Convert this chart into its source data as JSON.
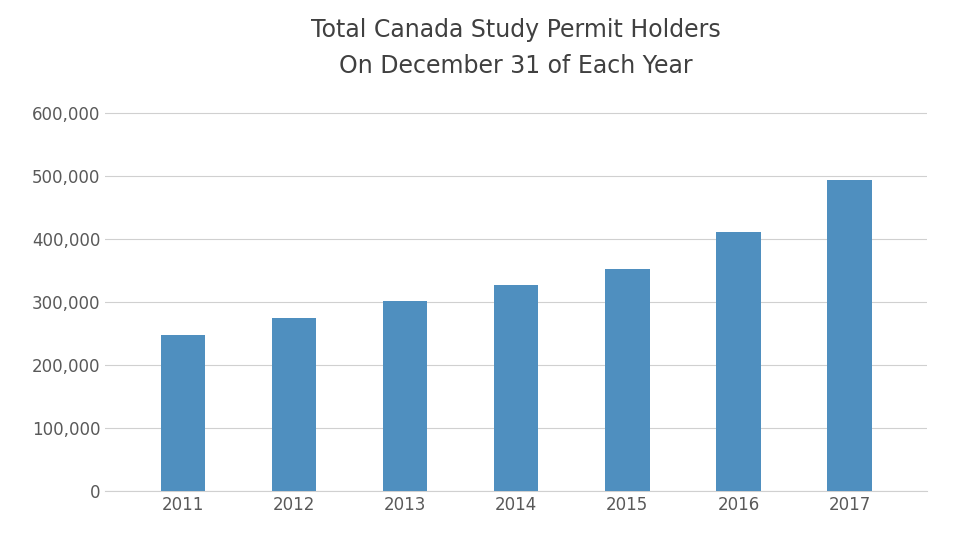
{
  "title_line1": "Total Canada Study Permit Holders",
  "title_line2": "On December 31 of Each Year",
  "categories": [
    "2011",
    "2012",
    "2013",
    "2014",
    "2015",
    "2016",
    "2017"
  ],
  "values": [
    248000,
    275000,
    301000,
    327000,
    352000,
    411000,
    494000
  ],
  "bar_color": "#4f8fbf",
  "background_color": "#ffffff",
  "ylim": [
    0,
    620000
  ],
  "yticks": [
    0,
    100000,
    200000,
    300000,
    400000,
    500000,
    600000
  ],
  "grid_color": "#d0d0d0",
  "title_color": "#404040",
  "tick_label_color": "#595959",
  "title_fontsize": 17,
  "tick_fontsize": 12,
  "bar_width": 0.4
}
